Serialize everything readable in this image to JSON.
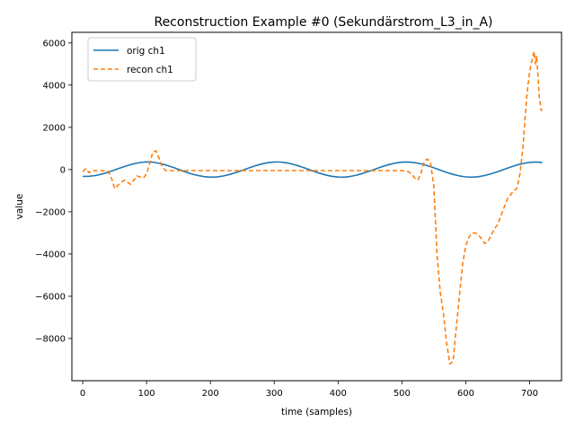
{
  "chart_data": {
    "type": "line",
    "title": "Reconstruction Example #0 (Sekundärstrom_L3_in_A)",
    "xlabel": "time (samples)",
    "ylabel": "value",
    "xlim": [
      -17,
      750
    ],
    "ylim": [
      -10000,
      6500
    ],
    "xticks": [
      0,
      100,
      200,
      300,
      400,
      500,
      600,
      700
    ],
    "yticks": [
      -8000,
      -6000,
      -4000,
      -2000,
      0,
      2000,
      4000,
      6000
    ],
    "tick_labels": {
      "x": [
        "0",
        "100",
        "200",
        "300",
        "400",
        "500",
        "600",
        "700"
      ],
      "y": [
        "−8000",
        "−6000",
        "−4000",
        "−2000",
        "0",
        "2000",
        "4000",
        "6000"
      ]
    },
    "grid": false,
    "legend": "top-left",
    "series": [
      {
        "name": "orig ch1",
        "color": "#1f77b4",
        "style": "solid",
        "x": [
          0,
          10,
          20,
          30,
          40,
          50,
          60,
          70,
          80,
          90,
          100,
          110,
          120,
          130,
          140,
          150,
          160,
          170,
          180,
          190,
          200,
          210,
          220,
          230,
          240,
          250,
          260,
          270,
          280,
          290,
          300,
          310,
          320,
          330,
          340,
          350,
          360,
          370,
          380,
          390,
          400,
          410,
          420,
          430,
          440,
          450,
          460,
          470,
          480,
          490,
          500,
          510,
          520,
          530,
          540,
          550,
          560,
          570,
          580,
          590,
          600,
          610,
          620,
          630,
          640,
          650,
          660,
          670,
          680,
          690,
          700,
          710,
          720
        ],
        "y": [
          -320,
          -319,
          -283,
          -216,
          -124,
          -18,
          90,
          190,
          273,
          332,
          362,
          350,
          295,
          218,
          120,
          10,
          -102,
          -200,
          -280,
          -335,
          -360,
          -350,
          -305,
          -232,
          -140,
          -35,
          74,
          175,
          262,
          325,
          358,
          356,
          315,
          245,
          155,
          52,
          -58,
          -163,
          -253,
          -318,
          -356,
          -358,
          -322,
          -258,
          -170,
          -66,
          42,
          148,
          240,
          309,
          352,
          360,
          330,
          271,
          186,
          82,
          -28,
          -134,
          -228,
          -301,
          -348,
          -361,
          -337,
          -280,
          -198,
          -98,
          12,
          119,
          216,
          293,
          343,
          360,
          340
        ]
      },
      {
        "name": "recon ch1",
        "color": "#ff7f0e",
        "style": "dashed",
        "x": [
          0,
          5,
          10,
          15,
          20,
          30,
          40,
          45,
          50,
          55,
          60,
          65,
          70,
          75,
          80,
          85,
          90,
          95,
          100,
          105,
          110,
          115,
          120,
          125,
          130,
          140,
          200,
          300,
          400,
          500,
          510,
          515,
          520,
          525,
          530,
          535,
          540,
          545,
          550,
          555,
          560,
          565,
          570,
          575,
          580,
          585,
          590,
          595,
          600,
          605,
          610,
          615,
          620,
          625,
          630,
          635,
          640,
          645,
          650,
          655,
          660,
          665,
          670,
          675,
          680,
          685,
          690,
          693,
          696,
          699,
          702,
          705,
          707,
          709,
          711,
          713,
          715,
          718,
          720
        ],
        "y": [
          -100,
          50,
          -150,
          -50,
          -50,
          -50,
          -80,
          -400,
          -900,
          -750,
          -600,
          -500,
          -600,
          -700,
          -500,
          -300,
          -350,
          -400,
          -200,
          300,
          850,
          880,
          500,
          100,
          -50,
          -50,
          -50,
          -50,
          -50,
          -50,
          -100,
          -200,
          -400,
          -500,
          -150,
          400,
          500,
          300,
          -800,
          -4000,
          -5800,
          -6800,
          -8200,
          -9200,
          -9100,
          -7500,
          -6000,
          -4500,
          -3600,
          -3200,
          -3000,
          -3000,
          -3100,
          -3300,
          -3500,
          -3400,
          -3100,
          -2800,
          -2600,
          -2200,
          -1800,
          -1400,
          -1200,
          -1000,
          -900,
          -200,
          1200,
          2500,
          3600,
          4400,
          5000,
          5300,
          5600,
          5000,
          5400,
          4500,
          3500,
          2800,
          2800
        ]
      }
    ]
  }
}
